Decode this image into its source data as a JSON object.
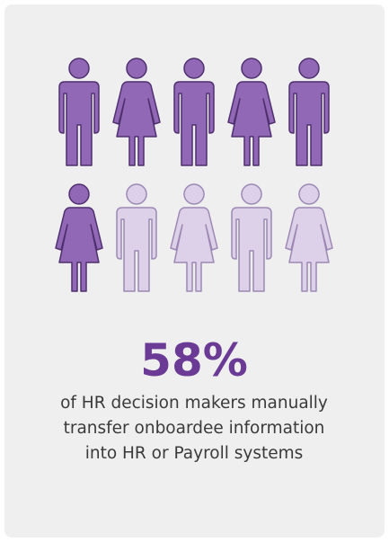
{
  "stat": "58%",
  "caption": [
    "of HR decision makers manually",
    "transfer onboardee information",
    "into HR or Payroll systems"
  ]
}
